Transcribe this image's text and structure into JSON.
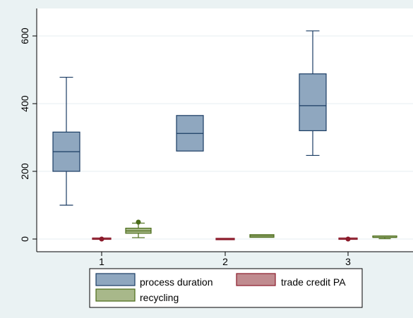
{
  "chart_data": {
    "type": "box",
    "categories": [
      "1",
      "2",
      "3"
    ],
    "y_ticks": [
      "0",
      "200",
      "400",
      "600"
    ],
    "ylim": [
      -20,
      630
    ],
    "grid": true,
    "legend_position": "bottom",
    "series": [
      {
        "name": "process duration",
        "color": "#8fa7bf",
        "stroke": "#1a3c63",
        "boxes": [
          {
            "whisker_low": 100,
            "q1": 200,
            "median": 258,
            "q3": 316,
            "whisker_high": 478,
            "outliers": []
          },
          {
            "whisker_low": 260,
            "q1": 260,
            "median": 312,
            "q3": 365,
            "whisker_high": 365,
            "outliers": []
          },
          {
            "whisker_low": 247,
            "q1": 320,
            "median": 394,
            "q3": 488,
            "whisker_high": 615,
            "outliers": []
          }
        ]
      },
      {
        "name": "trade credit PA",
        "color": "#c08b8f",
        "stroke": "#8b1a2b",
        "boxes": [
          {
            "whisker_low": 0,
            "q1": 0,
            "median": 0,
            "q3": 1,
            "whisker_high": 1,
            "outliers": [
              0
            ]
          },
          {
            "whisker_low": 0,
            "q1": 0,
            "median": 0,
            "q3": 0,
            "whisker_high": 0,
            "outliers": []
          },
          {
            "whisker_low": 0,
            "q1": 0,
            "median": 0,
            "q3": 1,
            "whisker_high": 1,
            "outliers": [
              0
            ]
          }
        ]
      },
      {
        "name": "recycling",
        "color": "#a8b88a",
        "stroke": "#4a6b18",
        "boxes": [
          {
            "whisker_low": 4,
            "q1": 17,
            "median": 24,
            "q3": 32,
            "whisker_high": 47,
            "outliers": [
              50
            ]
          },
          {
            "whisker_low": 5,
            "q1": 5,
            "median": 9,
            "q3": 13,
            "whisker_high": 13,
            "outliers": []
          },
          {
            "whisker_low": 1,
            "q1": 3,
            "median": 5,
            "q3": 7,
            "whisker_high": 9,
            "outliers": []
          }
        ]
      }
    ]
  }
}
